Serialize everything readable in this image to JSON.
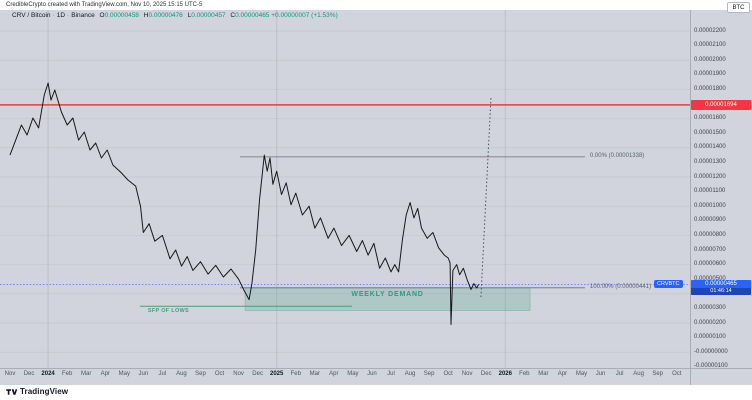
{
  "topbar": {
    "attribution": "CredibleCrypto created with TradingView.com, Nov 10, 2025 15:15 UTC-5",
    "unit_button": "BTC"
  },
  "legend": {
    "symbol": "CRV / Bitcoin",
    "separator": "·",
    "interval": "1D",
    "exchange": "Binance",
    "open_label": "O",
    "open": "0.00000458",
    "high_label": "H",
    "high": "0.00000476",
    "low_label": "L",
    "low": "0.00000457",
    "close_label": "C",
    "close": "0.00000465",
    "change": "+0.00000007 (+1.53%)"
  },
  "annotations": {
    "red_level_label": "0.00001694",
    "fib_top_label": "0.00% (0.00001338)",
    "fib_bottom_label": "100.00% (0.00000441)",
    "demand_zone_label": "WEEKLY DEMAND",
    "sfp_label": "SFP OF LOWS",
    "ticker_tag": "CRVBTC",
    "current_price": "0.00000465",
    "countdown": "01:46:14"
  },
  "price_axis": {
    "ticks": [
      "0.00002200",
      "0.00002100",
      "0.00002000",
      "0.00001900",
      "0.00001800",
      "0.00001700",
      "0.00001600",
      "0.00001500",
      "0.00001400",
      "0.00001300",
      "0.00001200",
      "0.00001100",
      "0.00001000",
      "0.00000900",
      "0.00000800",
      "0.00000700",
      "0.00000600",
      "0.00000500",
      "0.00000400",
      "0.00000300",
      "0.00000200",
      "0.00000100",
      "-0.00000000",
      "-0.00000100"
    ]
  },
  "time_axis": {
    "labels": [
      "Nov",
      "Dec",
      "2024",
      "Feb",
      "Mar",
      "Apr",
      "May",
      "Jun",
      "Jul",
      "Aug",
      "Sep",
      "Oct",
      "Nov",
      "Dec",
      "2025",
      "Feb",
      "Mar",
      "Apr",
      "May",
      "Jun",
      "Jul",
      "Aug",
      "Sep",
      "Oct",
      "Nov",
      "Dec",
      "2026",
      "Feb",
      "Mar",
      "Apr",
      "May",
      "Jun",
      "Jul",
      "Aug",
      "Sep",
      "Oct",
      "Nov",
      "Dec"
    ]
  },
  "footer": {
    "logo_text": "TradingView"
  },
  "colors": {
    "background": "#d1d4dc",
    "bullish": "#089981",
    "red_line": "#f23645",
    "blue": "#2962ff",
    "zone_green": "#2a9d71",
    "fib_gray": "#6a6d78",
    "series_black": "#16181d",
    "text_dark": "#131722"
  },
  "chart_data": {
    "type": "line",
    "symbol": "CRV/BTC",
    "interval": "1D",
    "title": "CRV / Bitcoin · 1D · Binance",
    "price_unit": "BTC, values stored as price * 1e8",
    "x_unit": "months since Nov 2023",
    "ylim": [
      -100,
      2300
    ],
    "grid": true,
    "points": [
      [
        0,
        1350
      ],
      [
        0.3,
        1453
      ],
      [
        0.6,
        1556
      ],
      [
        0.9,
        1488
      ],
      [
        1.2,
        1604
      ],
      [
        1.5,
        1536
      ],
      [
        1.8,
        1762
      ],
      [
        2,
        1844
      ],
      [
        2.15,
        1727
      ],
      [
        2.35,
        1796
      ],
      [
        2.7,
        1645
      ],
      [
        3,
        1556
      ],
      [
        3.3,
        1604
      ],
      [
        3.6,
        1453
      ],
      [
        3.9,
        1508
      ],
      [
        4.2,
        1385
      ],
      [
        4.5,
        1433
      ],
      [
        4.8,
        1330
      ],
      [
        5.1,
        1385
      ],
      [
        5.4,
        1282
      ],
      [
        5.8,
        1234
      ],
      [
        6.2,
        1179
      ],
      [
        6.6,
        1138
      ],
      [
        6.85,
        1000
      ],
      [
        7,
        820
      ],
      [
        7.3,
        880
      ],
      [
        7.6,
        760
      ],
      [
        8,
        800
      ],
      [
        8.4,
        640
      ],
      [
        8.7,
        700
      ],
      [
        9,
        590
      ],
      [
        9.3,
        655
      ],
      [
        9.6,
        560
      ],
      [
        10,
        620
      ],
      [
        10.4,
        535
      ],
      [
        10.8,
        595
      ],
      [
        11.2,
        515
      ],
      [
        11.6,
        570
      ],
      [
        12,
        500
      ],
      [
        12.3,
        420
      ],
      [
        12.55,
        360
      ],
      [
        12.7,
        470
      ],
      [
        12.9,
        700
      ],
      [
        13.1,
        1050
      ],
      [
        13.35,
        1350
      ],
      [
        13.5,
        1240
      ],
      [
        13.65,
        1330
      ],
      [
        13.8,
        1150
      ],
      [
        14,
        1240
      ],
      [
        14.25,
        1080
      ],
      [
        14.5,
        1160
      ],
      [
        14.75,
        1010
      ],
      [
        15,
        1090
      ],
      [
        15.35,
        940
      ],
      [
        15.7,
        1000
      ],
      [
        16,
        850
      ],
      [
        16.3,
        920
      ],
      [
        16.7,
        780
      ],
      [
        17,
        850
      ],
      [
        17.4,
        730
      ],
      [
        17.8,
        800
      ],
      [
        18.2,
        690
      ],
      [
        18.5,
        765
      ],
      [
        18.8,
        665
      ],
      [
        19.1,
        745
      ],
      [
        19.4,
        575
      ],
      [
        19.7,
        645
      ],
      [
        20,
        550
      ],
      [
        20.2,
        600
      ],
      [
        20.4,
        550
      ],
      [
        20.6,
        770
      ],
      [
        20.8,
        940
      ],
      [
        21,
        1025
      ],
      [
        21.2,
        920
      ],
      [
        21.4,
        985
      ],
      [
        21.6,
        850
      ],
      [
        21.9,
        780
      ],
      [
        22.2,
        820
      ],
      [
        22.5,
        715
      ],
      [
        22.8,
        665
      ],
      [
        23,
        645
      ],
      [
        23.1,
        610
      ],
      [
        23.15,
        190
      ],
      [
        23.25,
        560
      ],
      [
        23.45,
        600
      ],
      [
        23.6,
        530
      ],
      [
        23.8,
        575
      ],
      [
        24,
        495
      ],
      [
        24.2,
        430
      ],
      [
        24.35,
        470
      ],
      [
        24.5,
        440
      ],
      [
        24.6,
        465
      ]
    ],
    "levels": {
      "alert_line": 1694,
      "current_price": 465,
      "fib_0": 1338,
      "fib_100": 441
    },
    "fib_range": {
      "t0": 12.07,
      "t1": 30.18
    },
    "demand_zone": {
      "t0": 12.34,
      "t1": 27.3,
      "top": 441,
      "bottom": 285
    },
    "sfp_line": {
      "t0": 6.82,
      "t1": 17.95,
      "price": 315
    },
    "projection": {
      "from": [
        24.72,
        378
      ],
      "to": [
        25.25,
        1748
      ]
    },
    "year_gridlines_t": [
      2,
      14,
      26
    ]
  }
}
